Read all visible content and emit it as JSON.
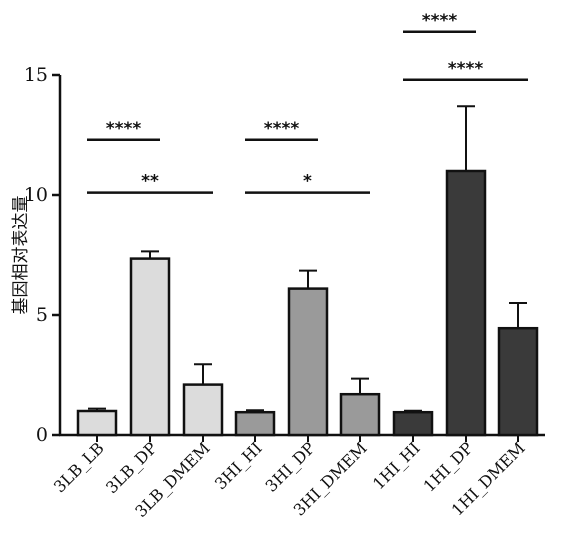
{
  "chart_data": {
    "type": "bar",
    "title": "",
    "xlabel": "",
    "ylabel": "基因相对表达量",
    "ylim": [
      0,
      15
    ],
    "yticks": [
      0,
      5,
      10,
      15
    ],
    "grid": false,
    "categories": [
      "3LB_LB",
      "3LB_DP",
      "3LB_DMEM",
      "3HI_HI",
      "3HI_DP",
      "3HI_DMEM",
      "1HI_HI",
      "1HI_DP",
      "1HI_DMEM"
    ],
    "values": [
      1.0,
      7.35,
      2.1,
      0.95,
      6.1,
      1.7,
      0.95,
      11.0,
      4.45
    ],
    "errors": [
      0.1,
      0.3,
      0.85,
      0.08,
      0.75,
      0.65,
      0.06,
      2.7,
      1.05
    ],
    "bar_colors": [
      "#dcdcdc",
      "#dcdcdc",
      "#dcdcdc",
      "#9a9a9a",
      "#9a9a9a",
      "#9a9a9a",
      "#3a3a3a",
      "#3a3a3a",
      "#3a3a3a"
    ],
    "significance": [
      {
        "from": 0,
        "to": 1,
        "y": 12.3,
        "label": "****"
      },
      {
        "from": 0,
        "to": 2,
        "y": 10.1,
        "label": "**"
      },
      {
        "from": 3,
        "to": 4,
        "y": 12.3,
        "label": "****"
      },
      {
        "from": 3,
        "to": 5,
        "y": 10.1,
        "label": "*"
      },
      {
        "from": 6,
        "to": 7,
        "y": 16.8,
        "label": "****"
      },
      {
        "from": 6,
        "to": 8,
        "y": 14.8,
        "label": "****"
      }
    ]
  }
}
